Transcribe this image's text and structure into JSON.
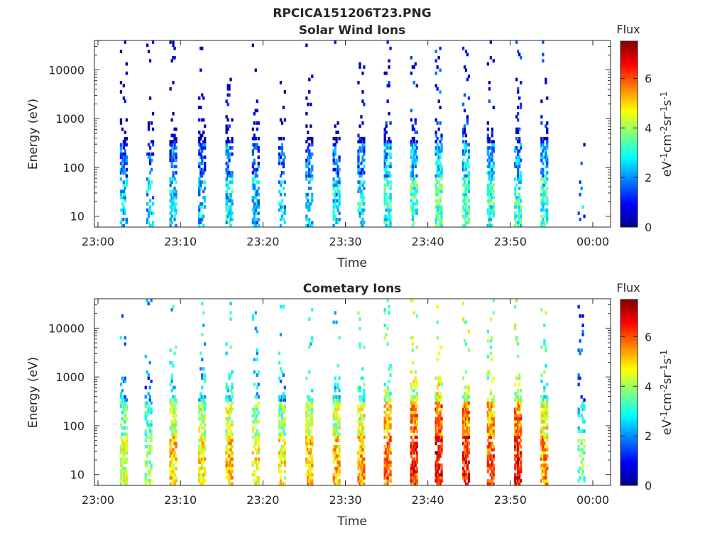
{
  "figure_title": "RPCICA151206T23.PNG",
  "chart_data": [
    {
      "type": "heatmap",
      "title": "Solar Wind Ions",
      "xlabel": "Time",
      "ylabel": "Energy (eV)",
      "x_ticks": [
        "23:00",
        "23:10",
        "23:20",
        "23:30",
        "23:40",
        "23:50",
        "00:00"
      ],
      "x_range_minutes": [
        0,
        60
      ],
      "y_scale": "log",
      "y_ticks": [
        "10",
        "100",
        "1000",
        "10000"
      ],
      "y_range": [
        6,
        40000
      ],
      "colorbar": {
        "title": "Flux",
        "label": "eV-1cm-2sr-1s-1",
        "range": [
          0,
          7.5
        ],
        "ticks": [
          "0",
          "2",
          "4",
          "6"
        ]
      },
      "bursts": [
        {
          "t": 3.0,
          "flux": 1.6,
          "density": 0.55
        },
        {
          "t": 6.2,
          "flux": 1.5,
          "density": 0.35
        },
        {
          "t": 9.0,
          "flux": 1.6,
          "density": 0.55
        },
        {
          "t": 12.5,
          "flux": 1.5,
          "density": 0.55
        },
        {
          "t": 15.8,
          "flux": 1.8,
          "density": 0.5
        },
        {
          "t": 19.0,
          "flux": 1.5,
          "density": 0.45
        },
        {
          "t": 22.2,
          "flux": 1.4,
          "density": 0.35
        },
        {
          "t": 25.5,
          "flux": 1.5,
          "density": 0.45
        },
        {
          "t": 28.8,
          "flux": 1.6,
          "density": 0.45
        },
        {
          "t": 31.8,
          "flux": 1.8,
          "density": 0.5
        },
        {
          "t": 35.0,
          "flux": 2.2,
          "density": 0.55
        },
        {
          "t": 38.2,
          "flux": 2.4,
          "density": 0.55
        },
        {
          "t": 41.2,
          "flux": 2.6,
          "density": 0.6
        },
        {
          "t": 44.5,
          "flux": 2.4,
          "density": 0.6
        },
        {
          "t": 47.5,
          "flux": 2.2,
          "density": 0.55
        },
        {
          "t": 50.8,
          "flux": 2.2,
          "density": 0.55
        },
        {
          "t": 54.0,
          "flux": 2.2,
          "density": 0.55
        },
        {
          "t": 58.5,
          "flux": 1.2,
          "density": 0.04
        }
      ]
    },
    {
      "type": "heatmap",
      "title": "Cometary Ions",
      "xlabel": "Time",
      "ylabel": "Energy (eV)",
      "x_ticks": [
        "23:00",
        "23:10",
        "23:20",
        "23:30",
        "23:40",
        "23:50",
        "00:00"
      ],
      "x_range_minutes": [
        0,
        60
      ],
      "y_scale": "log",
      "y_ticks": [
        "10",
        "100",
        "1000",
        "10000"
      ],
      "y_range": [
        6,
        40000
      ],
      "colorbar": {
        "title": "Flux",
        "label": "eV-1cm-2sr-1s-1",
        "range": [
          0,
          7.5
        ],
        "ticks": [
          "0",
          "2",
          "4",
          "6"
        ]
      },
      "bursts": [
        {
          "t": 3.0,
          "flux": 3.5,
          "density": 0.55
        },
        {
          "t": 6.0,
          "flux": 3.0,
          "density": 0.45
        },
        {
          "t": 9.0,
          "flux": 4.2,
          "density": 0.6
        },
        {
          "t": 12.5,
          "flux": 4.0,
          "density": 0.6
        },
        {
          "t": 15.8,
          "flux": 4.3,
          "density": 0.65
        },
        {
          "t": 19.0,
          "flux": 3.8,
          "density": 0.5
        },
        {
          "t": 22.2,
          "flux": 3.8,
          "density": 0.5
        },
        {
          "t": 25.5,
          "flux": 4.2,
          "density": 0.6
        },
        {
          "t": 28.8,
          "flux": 4.3,
          "density": 0.6
        },
        {
          "t": 31.8,
          "flux": 4.5,
          "density": 0.6
        },
        {
          "t": 35.0,
          "flux": 5.0,
          "density": 0.65
        },
        {
          "t": 38.2,
          "flux": 5.6,
          "density": 0.7
        },
        {
          "t": 41.2,
          "flux": 5.8,
          "density": 0.75
        },
        {
          "t": 44.5,
          "flux": 5.5,
          "density": 0.7
        },
        {
          "t": 47.5,
          "flux": 5.2,
          "density": 0.7
        },
        {
          "t": 50.8,
          "flux": 5.6,
          "density": 0.75
        },
        {
          "t": 54.0,
          "flux": 4.6,
          "density": 0.65
        },
        {
          "t": 58.5,
          "flux": 2.8,
          "density": 0.3
        }
      ]
    }
  ]
}
